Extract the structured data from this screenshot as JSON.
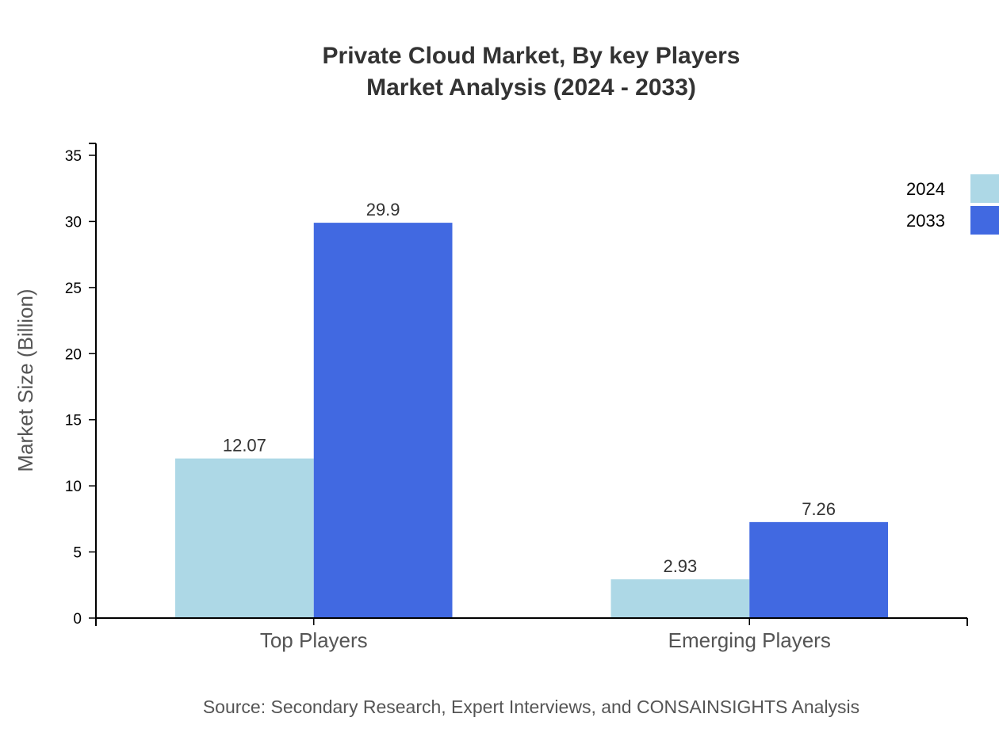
{
  "chart_data": {
    "type": "bar",
    "title_lines": [
      "Private Cloud Market, By key Players",
      "Market Analysis (2024 - 2033)"
    ],
    "xlabel": "",
    "ylabel": "Market Size (Billion)",
    "categories": [
      "Top Players",
      "Emerging Players"
    ],
    "series": [
      {
        "name": "2024",
        "values": [
          12.07,
          2.93
        ],
        "labels": [
          "12.07",
          "2.93"
        ],
        "color": "#add8e6"
      },
      {
        "name": "2033",
        "values": [
          29.9,
          7.26
        ],
        "labels": [
          "29.9",
          "7.26"
        ],
        "color": "#4169e1"
      }
    ],
    "ylim": [
      0,
      35.9
    ],
    "yticks": [
      0,
      5,
      10,
      15,
      20,
      25,
      30,
      35
    ],
    "grid": false,
    "legend_position": "top-right",
    "source": "Source: Secondary Research, Expert Interviews, and CONSAINSIGHTS Analysis"
  }
}
